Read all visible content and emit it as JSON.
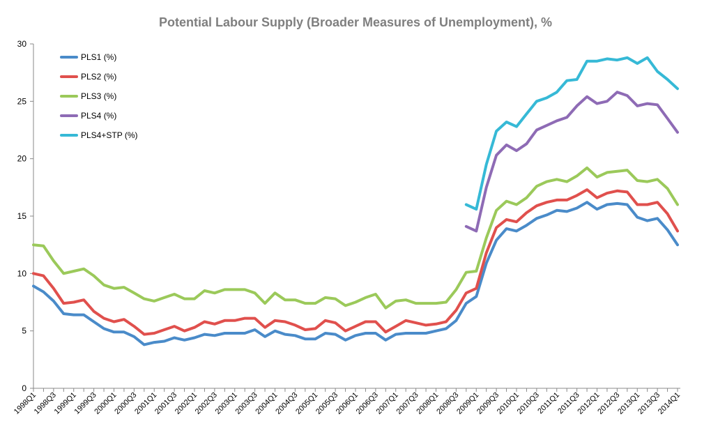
{
  "chart_data": {
    "type": "line",
    "title": "Potential Labour Supply (Broader Measures of Unemployment), %",
    "categories": [
      "1998Q1",
      null,
      "1998Q3",
      null,
      "1999Q1",
      null,
      "1999Q3",
      null,
      "2000Q1",
      null,
      "2000Q3",
      null,
      "2001Q1",
      null,
      "2001Q3",
      null,
      "2002Q1",
      null,
      "2002Q3",
      null,
      "2003Q1",
      null,
      "2003Q3",
      null,
      "2004Q1",
      null,
      "2004Q3",
      null,
      "2005Q1",
      null,
      "2005Q3",
      null,
      "2006Q1",
      null,
      "2006Q3",
      null,
      "2007Q1",
      null,
      "2007Q3",
      null,
      "2008Q1",
      null,
      "2008Q3",
      null,
      "2009Q1",
      null,
      "2009Q3",
      null,
      "2010Q1",
      null,
      "2010Q3",
      null,
      "2011Q1",
      null,
      "2011Q3",
      null,
      "2012Q1",
      null,
      "2012Q3",
      null,
      "2013Q1",
      null,
      "2013Q3",
      null,
      "2014Q1"
    ],
    "series": [
      {
        "name": "PLS1 (%)",
        "color": "#4a8bc9",
        "values": [
          8.9,
          8.4,
          7.6,
          6.5,
          6.4,
          6.4,
          5.8,
          5.2,
          4.9,
          4.9,
          4.5,
          3.8,
          4.0,
          4.1,
          4.4,
          4.2,
          4.4,
          4.7,
          4.6,
          4.8,
          4.8,
          4.8,
          5.1,
          4.5,
          5.0,
          4.7,
          4.6,
          4.3,
          4.3,
          4.8,
          4.7,
          4.2,
          4.6,
          4.8,
          4.8,
          4.2,
          4.7,
          4.8,
          4.8,
          4.8,
          5.0,
          5.2,
          5.9,
          7.4,
          8.0,
          10.9,
          12.9,
          13.9,
          13.7,
          14.2,
          14.8,
          15.1,
          15.5,
          15.4,
          15.7,
          16.2,
          15.6,
          16.0,
          16.1,
          16.0,
          14.9,
          14.6,
          14.8,
          13.8,
          12.5
        ]
      },
      {
        "name": "PLS2 (%)",
        "color": "#e0504d",
        "values": [
          10.0,
          9.8,
          8.7,
          7.4,
          7.5,
          7.7,
          6.7,
          6.1,
          5.8,
          6.0,
          5.4,
          4.7,
          4.8,
          5.1,
          5.4,
          5.0,
          5.3,
          5.8,
          5.6,
          5.9,
          5.9,
          6.1,
          6.1,
          5.3,
          5.9,
          5.8,
          5.5,
          5.1,
          5.2,
          5.9,
          5.7,
          5.0,
          5.4,
          5.8,
          5.8,
          4.9,
          5.4,
          5.9,
          5.7,
          5.5,
          5.6,
          5.8,
          6.8,
          8.3,
          8.7,
          11.8,
          14.0,
          14.7,
          14.5,
          15.3,
          15.9,
          16.2,
          16.4,
          16.4,
          16.8,
          17.3,
          16.6,
          17.0,
          17.2,
          17.1,
          16.0,
          16.0,
          16.2,
          15.2,
          13.7
        ]
      },
      {
        "name": "PLS3 (%)",
        "color": "#9bc95a",
        "values": [
          12.5,
          12.4,
          11.1,
          10.0,
          10.2,
          10.4,
          9.8,
          9.0,
          8.7,
          8.8,
          8.3,
          7.8,
          7.6,
          7.9,
          8.2,
          7.8,
          7.8,
          8.5,
          8.3,
          8.6,
          8.6,
          8.6,
          8.3,
          7.4,
          8.3,
          7.7,
          7.7,
          7.4,
          7.4,
          7.9,
          7.8,
          7.2,
          7.5,
          7.9,
          8.2,
          7.0,
          7.6,
          7.7,
          7.4,
          7.4,
          7.4,
          7.5,
          8.6,
          10.1,
          10.2,
          13.1,
          15.5,
          16.3,
          16.0,
          16.6,
          17.6,
          18.0,
          18.2,
          18.0,
          18.5,
          19.2,
          18.4,
          18.8,
          18.9,
          19.0,
          18.1,
          18.0,
          18.2,
          17.4,
          16.0
        ]
      },
      {
        "name": "PLS4 (%)",
        "color": "#8e6bb5",
        "values": [
          null,
          null,
          null,
          null,
          null,
          null,
          null,
          null,
          null,
          null,
          null,
          null,
          null,
          null,
          null,
          null,
          null,
          null,
          null,
          null,
          null,
          null,
          null,
          null,
          null,
          null,
          null,
          null,
          null,
          null,
          null,
          null,
          null,
          null,
          null,
          null,
          null,
          null,
          null,
          null,
          null,
          null,
          null,
          14.1,
          13.7,
          17.5,
          20.3,
          21.2,
          20.7,
          21.3,
          22.5,
          22.9,
          23.3,
          23.6,
          24.6,
          25.4,
          24.8,
          25.0,
          25.8,
          25.5,
          24.6,
          24.8,
          24.7,
          23.5,
          22.3
        ]
      },
      {
        "name": "PLS4+STP (%)",
        "color": "#36b9d6",
        "values": [
          null,
          null,
          null,
          null,
          null,
          null,
          null,
          null,
          null,
          null,
          null,
          null,
          null,
          null,
          null,
          null,
          null,
          null,
          null,
          null,
          null,
          null,
          null,
          null,
          null,
          null,
          null,
          null,
          null,
          null,
          null,
          null,
          null,
          null,
          null,
          null,
          null,
          null,
          null,
          null,
          null,
          null,
          null,
          16.0,
          15.6,
          19.5,
          22.4,
          23.2,
          22.8,
          23.9,
          25.0,
          25.3,
          25.8,
          26.8,
          26.9,
          28.5,
          28.5,
          28.7,
          28.6,
          28.8,
          28.3,
          28.8,
          27.6,
          26.9,
          26.1
        ]
      }
    ],
    "ylim": [
      0,
      30
    ],
    "yticks": [
      0,
      5,
      10,
      15,
      20,
      25,
      30
    ],
    "grid": false,
    "legend": "top-left"
  }
}
